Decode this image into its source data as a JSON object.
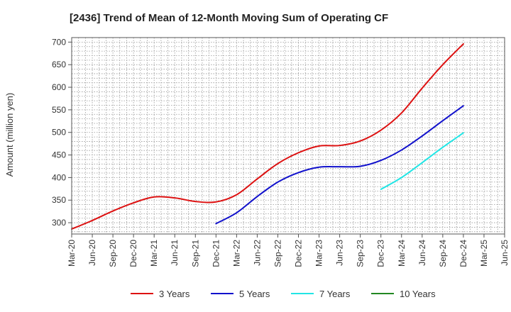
{
  "chart_data": {
    "type": "line",
    "title": "[2436]  Trend of Mean of 12-Month Moving Sum of Operating CF",
    "xlabel": "",
    "ylabel": "Amount (million yen)",
    "ylim": [
      275,
      710
    ],
    "yticks": [
      300,
      350,
      400,
      450,
      500,
      550,
      600,
      650,
      700
    ],
    "x": [
      "Mar-20",
      "Jun-20",
      "Sep-20",
      "Dec-20",
      "Mar-21",
      "Jun-21",
      "Sep-21",
      "Dec-21",
      "Mar-22",
      "Jun-22",
      "Sep-22",
      "Dec-22",
      "Mar-23",
      "Jun-23",
      "Sep-23",
      "Dec-23",
      "Mar-24",
      "Jun-24",
      "Sep-24",
      "Dec-24",
      "Mar-25",
      "Jun-25"
    ],
    "grid": true,
    "legend_position": "bottom",
    "series": [
      {
        "name": "3 Years",
        "color": "#dd1111",
        "values": [
          286,
          305,
          326,
          344,
          357,
          355,
          347,
          346,
          362,
          397,
          431,
          455,
          470,
          471,
          481,
          505,
          543,
          598,
          650,
          696,
          null,
          null
        ]
      },
      {
        "name": "5 Years",
        "color": "#1111cc",
        "values": [
          null,
          null,
          null,
          null,
          null,
          null,
          null,
          298,
          322,
          358,
          390,
          411,
          423,
          424,
          425,
          438,
          461,
          492,
          526,
          559,
          null,
          null
        ]
      },
      {
        "name": "7 Years",
        "color": "#22e5e5",
        "values": [
          null,
          null,
          null,
          null,
          null,
          null,
          null,
          null,
          null,
          null,
          null,
          null,
          null,
          null,
          null,
          374,
          400,
          433,
          467,
          499,
          null,
          null
        ]
      },
      {
        "name": "10 Years",
        "color": "#228822",
        "values": [
          null,
          null,
          null,
          null,
          null,
          null,
          null,
          null,
          null,
          null,
          null,
          null,
          null,
          null,
          null,
          null,
          null,
          null,
          null,
          null,
          null,
          null
        ]
      }
    ]
  }
}
